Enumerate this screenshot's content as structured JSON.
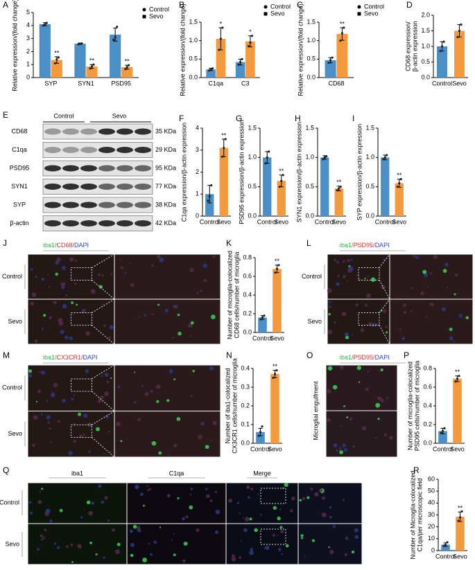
{
  "chart_data": [
    {
      "type": "bar",
      "panel": "A",
      "ylabel": [
        "Relative expression/(fold change)"
      ],
      "categories": [
        "SYP",
        "SYN1",
        "PSD95"
      ],
      "legend": "right",
      "ylim": [
        0,
        5
      ],
      "yticks": [
        0,
        1,
        2,
        3,
        4,
        5
      ],
      "series": [
        {
          "name": "Control",
          "color": "#4a8fc8",
          "values": [
            4.1,
            2.6,
            3.3
          ],
          "errors": [
            0.12,
            0.05,
            0.5
          ],
          "points": [
            [
              4.0,
              4.1,
              4.2
            ],
            [
              2.55,
              2.6,
              2.62
            ],
            [
              2.9,
              3.1,
              3.9
            ]
          ]
        },
        {
          "name": "Sevo",
          "color": "#f59a3c",
          "values": [
            1.35,
            0.85,
            0.8
          ],
          "errors": [
            0.25,
            0.15,
            0.15
          ],
          "points": [
            [
              1.1,
              1.4,
              1.55
            ],
            [
              0.7,
              0.85,
              1.0
            ],
            [
              0.65,
              0.8,
              0.95
            ]
          ],
          "labels": [
            "**",
            "**",
            "**"
          ]
        }
      ]
    },
    {
      "type": "bar",
      "panel": "B",
      "ylabel": [
        "Relative expression/(fold change)"
      ],
      "categories": [
        "C1qa",
        "C3"
      ],
      "legend": "right",
      "ylim": [
        0,
        1.5
      ],
      "yticks": [
        {
          "value": 0,
          "label": "0.0"
        },
        0.5,
        {
          "value": 1,
          "label": "1.0"
        },
        1.5
      ],
      "series": [
        {
          "name": "Control",
          "color": "#4a8fc8",
          "values": [
            0.22,
            0.42
          ],
          "errors": [
            0.03,
            0.08
          ],
          "points": [
            [
              0.19,
              0.22,
              0.25
            ],
            [
              0.35,
              0.42,
              0.5
            ]
          ]
        },
        {
          "name": "Sevo",
          "color": "#f59a3c",
          "values": [
            1.05,
            0.98
          ],
          "errors": [
            0.3,
            0.15
          ],
          "points": [
            [
              0.75,
              1.05,
              1.35
            ],
            [
              0.85,
              0.95,
              1.13
            ]
          ],
          "labels": [
            "*",
            "*"
          ]
        }
      ]
    },
    {
      "type": "bar",
      "panel": "C",
      "ylabel": [
        "Relative expression/(fold change)"
      ],
      "categories": [
        "CD68"
      ],
      "legend": "right",
      "ylim": [
        0,
        1.5
      ],
      "yticks": [
        {
          "value": 0,
          "label": "0.0"
        },
        0.5,
        {
          "value": 1,
          "label": "1.0"
        },
        1.5
      ],
      "series": [
        {
          "name": "Control",
          "color": "#4a8fc8",
          "values": [
            0.47
          ],
          "errors": [
            0.07
          ],
          "points": [
            [
              0.4,
              0.47,
              0.54
            ]
          ]
        },
        {
          "name": "Sevo",
          "color": "#f59a3c",
          "values": [
            1.18
          ],
          "errors": [
            0.17
          ],
          "points": [
            [
              1.0,
              1.2,
              1.35
            ]
          ],
          "labels": [
            "**"
          ]
        }
      ]
    },
    {
      "type": "bar",
      "panel": "D",
      "ylabel": [
        "CD68 expression/",
        "β-actin expression"
      ],
      "categories": [
        "Control",
        "Sevo"
      ],
      "colors": [
        "#4a8fc8",
        "#f59a3c"
      ],
      "values": [
        1.0,
        1.5
      ],
      "errors": [
        0.15,
        0.2
      ],
      "points": [
        [
          0.85,
          1.0,
          1.15
        ],
        [
          1.3,
          1.5,
          1.7
        ]
      ],
      "ylim": [
        0,
        2
      ],
      "yticks": [
        {
          "value": 0,
          "label": "0.0"
        },
        0.5,
        {
          "value": 1,
          "label": "1.0"
        },
        1.5,
        {
          "value": 2,
          "label": "2.0"
        }
      ]
    },
    {
      "type": "bar",
      "panel": "F",
      "ylabel": [
        "C1qa expression/β-actin expression"
      ],
      "categories": [
        "Control",
        "Sevo"
      ],
      "colors": [
        "#4a8fc8",
        "#f59a3c"
      ],
      "values": [
        1.0,
        3.1
      ],
      "errors": [
        0.4,
        0.4
      ],
      "points": [
        [
          0.7,
          0.9,
          1.4
        ],
        [
          2.7,
          3.1,
          3.5
        ]
      ],
      "labels": [
        null,
        "**"
      ],
      "ylim": [
        0,
        4
      ],
      "yticks": [
        0,
        1,
        2,
        3,
        4
      ]
    },
    {
      "type": "bar",
      "panel": "G",
      "ylabel": [
        "PSD95 expression/β-actin expression"
      ],
      "categories": [
        "Control",
        "Sevo"
      ],
      "colors": [
        "#4a8fc8",
        "#f59a3c"
      ],
      "values": [
        1.0,
        0.6
      ],
      "errors": [
        0.1,
        0.1
      ],
      "points": [
        [
          0.9,
          1.0,
          1.1
        ],
        [
          0.5,
          0.6,
          0.7
        ]
      ],
      "labels": [
        null,
        "**"
      ],
      "ylim": [
        0,
        1.5
      ],
      "yticks": [
        {
          "value": 0,
          "label": "0.0"
        },
        0.5,
        {
          "value": 1,
          "label": "1.0"
        },
        1.5
      ]
    },
    {
      "type": "bar",
      "panel": "H",
      "ylabel": [
        "SYN1 expression/β-actin expression"
      ],
      "categories": [
        "Control",
        "Sevo"
      ],
      "colors": [
        "#4a8fc8",
        "#f59a3c"
      ],
      "values": [
        1.0,
        0.47
      ],
      "errors": [
        0.03,
        0.04
      ],
      "points": [
        [
          0.97,
          1.0,
          1.02
        ],
        [
          0.44,
          0.47,
          0.5
        ]
      ],
      "labels": [
        null,
        "**"
      ],
      "ylim": [
        0,
        1.5
      ],
      "yticks": [
        {
          "value": 0,
          "label": "0.0"
        },
        0.5,
        {
          "value": 1,
          "label": "1.0"
        },
        1.5
      ]
    },
    {
      "type": "bar",
      "panel": "I",
      "ylabel": [
        "SYP expression/β-actin expression"
      ],
      "categories": [
        "Control",
        "Sevo"
      ],
      "colors": [
        "#4a8fc8",
        "#f59a3c"
      ],
      "values": [
        1.0,
        0.56
      ],
      "errors": [
        0.04,
        0.07
      ],
      "points": [
        [
          0.97,
          1.0,
          1.04
        ],
        [
          0.5,
          0.56,
          0.63
        ]
      ],
      "labels": [
        null,
        "**"
      ],
      "ylim": [
        0,
        1.5
      ],
      "yticks": [
        {
          "value": 0,
          "label": "0.0"
        },
        0.5,
        {
          "value": 1,
          "label": "1.0"
        },
        1.5
      ]
    },
    {
      "type": "bar",
      "panel": "K",
      "ylabel": [
        "Number of microglia-colocalized",
        "CD68 cells/number of microglia"
      ],
      "categories": [
        "Control",
        "Sevo"
      ],
      "colors": [
        "#4a8fc8",
        "#f59a3c"
      ],
      "values": [
        0.16,
        0.68
      ],
      "errors": [
        0.02,
        0.04
      ],
      "points": [
        [
          0.14,
          0.16,
          0.18
        ],
        [
          0.64,
          0.68,
          0.72
        ]
      ],
      "labels": [
        null,
        "**"
      ],
      "ylim": [
        0,
        0.8
      ],
      "yticks": [
        {
          "value": 0,
          "label": "0.0"
        },
        0.2,
        0.4,
        0.6,
        0.8
      ]
    },
    {
      "type": "bar",
      "panel": "N",
      "ylabel": [
        "Number of iba1-colocalized",
        "CX3CR1 cells/number of microglia"
      ],
      "categories": [
        "Control",
        "Sevo"
      ],
      "colors": [
        "#4a8fc8",
        "#f59a3c"
      ],
      "values": [
        0.06,
        0.37
      ],
      "errors": [
        0.02,
        0.02
      ],
      "points": [
        [
          0.04,
          0.06,
          0.09
        ],
        [
          0.35,
          0.37,
          0.39
        ]
      ],
      "labels": [
        null,
        "**"
      ],
      "ylim": [
        0,
        0.4
      ],
      "yticks": [
        {
          "value": 0,
          "label": "0.0"
        },
        0.1,
        0.2,
        0.3,
        0.4
      ]
    },
    {
      "type": "bar",
      "panel": "P",
      "ylabel": [
        "Number of microglia-colocalized",
        "PSD95 cells/number of microglia"
      ],
      "categories": [
        "Control",
        "Sevo"
      ],
      "colors": [
        "#4a8fc8",
        "#f59a3c"
      ],
      "values": [
        0.13,
        0.69
      ],
      "errors": [
        0.03,
        0.03
      ],
      "points": [
        [
          0.11,
          0.13,
          0.16
        ],
        [
          0.66,
          0.69,
          0.72
        ]
      ],
      "labels": [
        null,
        "**"
      ],
      "ylim": [
        0,
        0.8
      ],
      "yticks": [
        {
          "value": 0,
          "label": "0.0"
        },
        0.2,
        0.4,
        0.6,
        0.8
      ]
    },
    {
      "type": "bar",
      "panel": "R",
      "ylabel": [
        "Number of Microglia-colocalized",
        "C1qa/per microscopic field"
      ],
      "categories": [
        "Control",
        "Sevo"
      ],
      "colors": [
        "#4a8fc8",
        "#f59a3c"
      ],
      "values": [
        5,
        28.5
      ],
      "errors": [
        1.5,
        4
      ],
      "points": [
        [
          4,
          5,
          7
        ],
        [
          25,
          28,
          33
        ]
      ],
      "labels": [
        null,
        "**"
      ],
      "ylim": [
        0,
        60
      ],
      "yticks": [
        0,
        10,
        20,
        30,
        40,
        50,
        60
      ]
    }
  ],
  "blot": {
    "panel": "E",
    "groups": [
      "Control",
      "Sevo"
    ],
    "bands": [
      {
        "name": "CD68",
        "size": "35 KDa"
      },
      {
        "name": "C1qa",
        "size": "29 KDa"
      },
      {
        "name": "PSD95",
        "size": "95 KDa"
      },
      {
        "name": "SYN1",
        "size": "77 KDa"
      },
      {
        "name": "SYP",
        "size": "38 KDa"
      },
      {
        "name": "β-actin",
        "size": "42 KDa"
      }
    ]
  },
  "images": [
    {
      "panel": "J",
      "markers": [
        {
          "text": "iba1/",
          "color": "#2db34a"
        },
        {
          "text": "CD68/",
          "color": "#e03030"
        },
        {
          "text": "DAPI",
          "color": "#3040d0"
        }
      ],
      "rows": [
        "Control",
        "Sevo"
      ]
    },
    {
      "panel": "L",
      "markers": [
        {
          "text": "iba1/",
          "color": "#2db34a"
        },
        {
          "text": "PSD95/",
          "color": "#e03030"
        },
        {
          "text": "DAPI",
          "color": "#3040d0"
        }
      ],
      "rows": [
        "Control",
        "Sevo"
      ]
    },
    {
      "panel": "M",
      "markers": [
        {
          "text": "iba1/",
          "color": "#2db34a"
        },
        {
          "text": "CX3CR1/",
          "color": "#e03030"
        },
        {
          "text": "DAPI",
          "color": "#3040d0"
        }
      ],
      "rows": [
        "Control",
        "Sevo"
      ]
    },
    {
      "panel": "O",
      "markers": [
        {
          "text": "iba1/",
          "color": "#2db34a"
        },
        {
          "text": "PSD95/",
          "color": "#e03030"
        },
        {
          "text": "DAPI",
          "color": "#3040d0"
        }
      ],
      "side_label": "Microglial engulfment"
    },
    {
      "panel": "Q",
      "columns": [
        {
          "text": "iba1",
          "color": "#2db34a"
        },
        {
          "text": "C1qa",
          "color": "#b030b0"
        },
        {
          "text": "Merge",
          "color": "#000000"
        }
      ],
      "rows": [
        "Control",
        "Sevo"
      ]
    }
  ]
}
